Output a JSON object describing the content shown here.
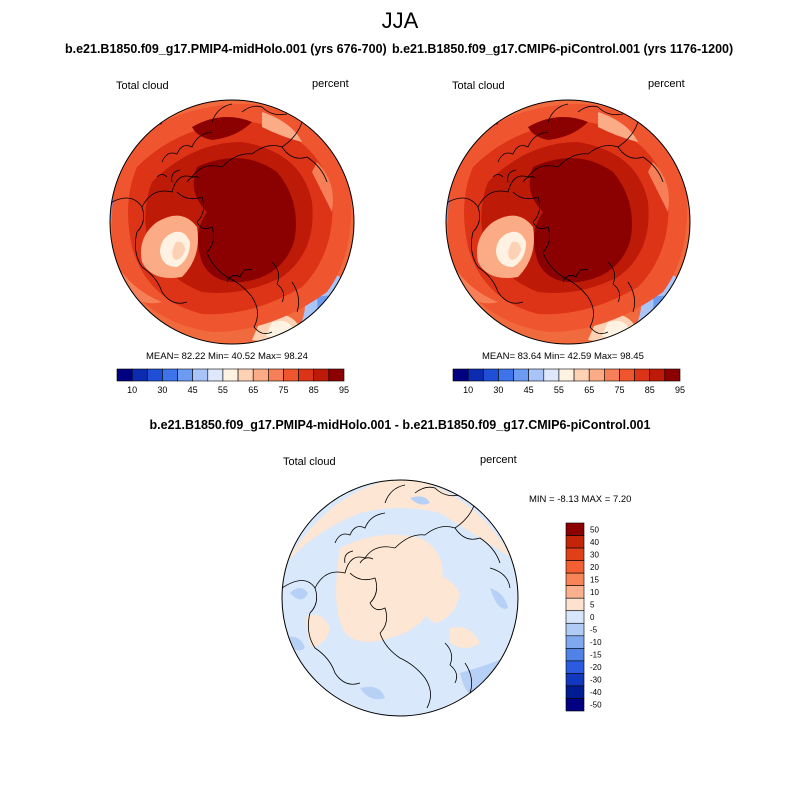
{
  "season": "JJA",
  "panels": [
    {
      "title": "b.e21.B1850.f09_g17.PMIP4-midHolo.001 (yrs 676-700)",
      "left_label": "Total cloud",
      "right_label": "percent",
      "stats": "MEAN=  82.22  Min=  40.52  Max=  98.24",
      "mean": 82.22,
      "min": 40.52,
      "max": 98.24
    },
    {
      "title": "b.e21.B1850.f09_g17.CMIP6-piControl.001 (yrs 1176-1200)",
      "left_label": "Total cloud",
      "right_label": "percent",
      "stats": "MEAN=  83.64  Min=  42.59  Max=  98.45",
      "mean": 83.64,
      "min": 42.59,
      "max": 98.45
    }
  ],
  "diff": {
    "title": "b.e21.B1850.f09_g17.PMIP4-midHolo.001 - b.e21.B1850.f09_g17.CMIP6-piControl.001",
    "left_label": "Total cloud",
    "right_label": "percent",
    "minmax": "MIN =  -8.13 MAX =   7.20",
    "min": -8.13,
    "max": 7.2
  },
  "colorbar_abs": {
    "labels": [
      "10",
      "30",
      "45",
      "55",
      "65",
      "75",
      "85",
      "95"
    ],
    "colors": [
      "#000080",
      "#0b2bb0",
      "#1f4fd6",
      "#3d74ea",
      "#6d9bf2",
      "#a9c5f7",
      "#dde8fb",
      "#fff2e3",
      "#fdd2b4",
      "#fbab86",
      "#f77f58",
      "#ef5630",
      "#dd3417",
      "#bd1a08",
      "#8b0000"
    ]
  },
  "colorbar_diff": {
    "labels": [
      "50",
      "40",
      "30",
      "20",
      "15",
      "10",
      "5",
      "0",
      "-5",
      "-10",
      "-15",
      "-20",
      "-30",
      "-40",
      "-50"
    ],
    "colors": [
      "#8b0000",
      "#c3240a",
      "#e03f17",
      "#f25f32",
      "#f88558",
      "#fbb18e",
      "#fde3cf",
      "#d7e6fb",
      "#b0ccf5",
      "#7fa8ef",
      "#4f83e8",
      "#2b5cdd",
      "#1238be",
      "#001c93",
      "#000080"
    ]
  },
  "colors": {
    "land_outline": "#000000",
    "abs_outer": "#f16a3e",
    "abs_mid": "#e0451b",
    "abs_inner": "#c02409",
    "abs_core": "#8b0000",
    "abs_warm_patch": "#fbc7a2",
    "abs_cool_patch": "#6d9bf2",
    "diff_ocean": "#d9e8fb",
    "diff_land": "#fde6d3",
    "diff_neg": "#b7d1f6"
  }
}
